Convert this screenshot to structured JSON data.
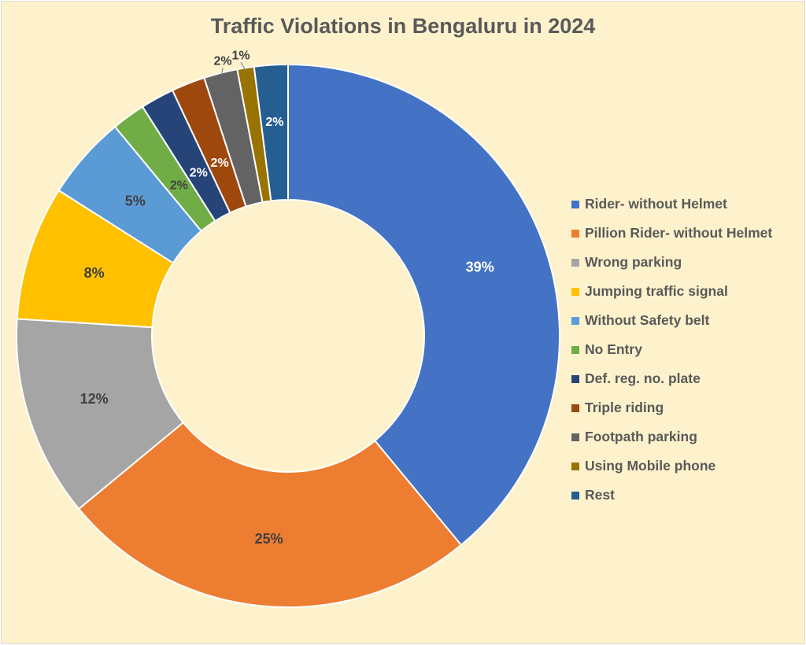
{
  "chart_data": {
    "type": "pie",
    "title": "Traffic Violations in Bengaluru in 2024",
    "donut": true,
    "legend_position": "right",
    "categories": [
      "Rider- without Helmet",
      "Pillion Rider- without Helmet",
      "Wrong parking",
      "Jumping traffic signal",
      "Without Safety belt",
      "No Entry",
      "Def. reg. no. plate",
      "Triple riding",
      "Footpath parking",
      "Using Mobile phone",
      "Rest"
    ],
    "values": [
      39,
      25,
      12,
      8,
      5,
      2,
      2,
      2,
      2,
      1,
      2
    ],
    "data_labels": [
      "39%",
      "25%",
      "12%",
      "8%",
      "5%",
      "2%",
      "2%",
      "2%",
      "2%",
      "1%",
      "2%"
    ],
    "colors": [
      "#4472c4",
      "#ed7d31",
      "#a5a5a5",
      "#ffc000",
      "#5b9bd5",
      "#70ad47",
      "#264478",
      "#9e480e",
      "#636363",
      "#997300",
      "#255e91"
    ],
    "label_colors": [
      "#ffffff",
      "#404040",
      "#404040",
      "#404040",
      "#404040",
      "#404040",
      "#ffffff",
      "#ffffff",
      "#404040",
      "#404040",
      "#ffffff"
    ]
  }
}
